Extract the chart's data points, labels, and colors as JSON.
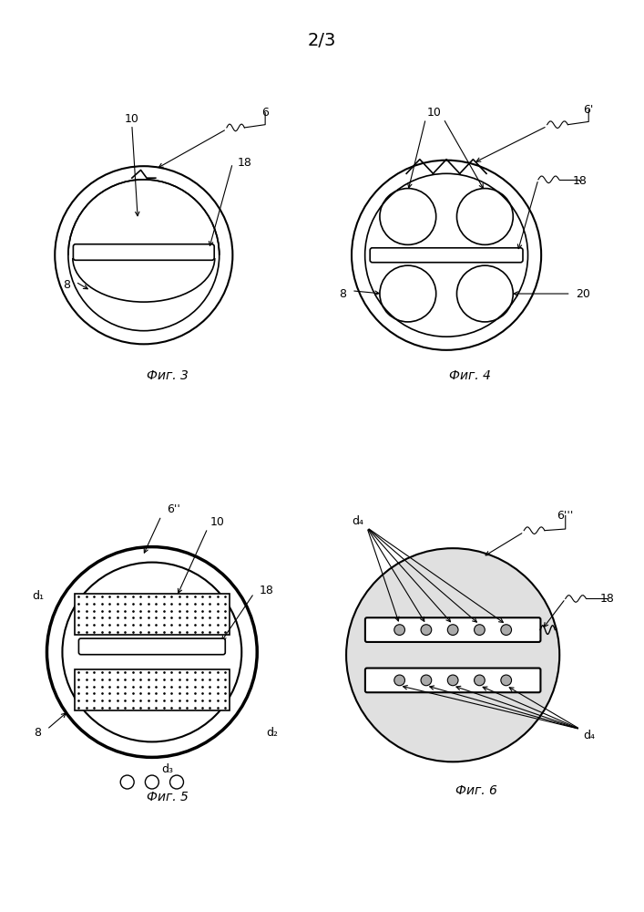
{
  "page_label": "2/3",
  "fig3_label": "Фиг. 3",
  "fig4_label": "Фиг. 4",
  "fig5_label": "Фиг. 5",
  "fig6_label": "Фиг. 6",
  "bg_color": "#ffffff",
  "line_color": "#000000"
}
